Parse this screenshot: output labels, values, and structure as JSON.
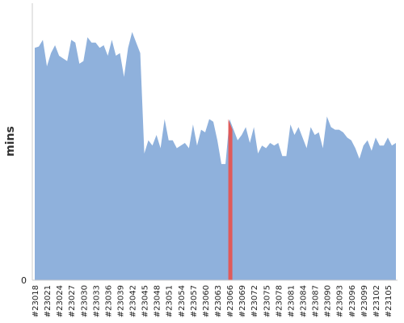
{
  "chart_data": {
    "type": "area",
    "ylabel": "mins",
    "xlabel": "",
    "title": "",
    "ylim": [
      0,
      100
    ],
    "y_tick_labels": [
      "0"
    ],
    "grid": false,
    "x_tick_labels": [
      "#23018",
      "#23021",
      "#23024",
      "#23027",
      "#23030",
      "#23033",
      "#23036",
      "#23039",
      "#23042",
      "#23045",
      "#23048",
      "#23051",
      "#23054",
      "#23057",
      "#23060",
      "#23063",
      "#23066",
      "#23069",
      "#23072",
      "#23075",
      "#23078",
      "#23081",
      "#23084",
      "#23087",
      "#23090",
      "#23093",
      "#23096",
      "#23099",
      "#23102",
      "#23105"
    ],
    "x": [
      "#23018",
      "#23019",
      "#23020",
      "#23021",
      "#23022",
      "#23023",
      "#23024",
      "#23025",
      "#23026",
      "#23027",
      "#23028",
      "#23029",
      "#23030",
      "#23031",
      "#23032",
      "#23033",
      "#23034",
      "#23035",
      "#23036",
      "#23037",
      "#23038",
      "#23039",
      "#23040",
      "#23041",
      "#23042",
      "#23043",
      "#23044",
      "#23045",
      "#23046",
      "#23047",
      "#23048",
      "#23049",
      "#23050",
      "#23051",
      "#23052",
      "#23053",
      "#23054",
      "#23055",
      "#23056",
      "#23057",
      "#23058",
      "#23059",
      "#23060",
      "#23061",
      "#23062",
      "#23063",
      "#23064",
      "#23065",
      "#23066",
      "#23067",
      "#23068",
      "#23069",
      "#23070",
      "#23071",
      "#23072",
      "#23073",
      "#23074",
      "#23075",
      "#23076",
      "#23077",
      "#23078",
      "#23079",
      "#23080",
      "#23081",
      "#23082",
      "#23083",
      "#23084",
      "#23085",
      "#23086",
      "#23087",
      "#23088",
      "#23089",
      "#23090",
      "#23091",
      "#23092",
      "#23093",
      "#23094",
      "#23095",
      "#23096",
      "#23097",
      "#23098",
      "#23099",
      "#23100",
      "#23101",
      "#23102",
      "#23103",
      "#23104",
      "#23105",
      "#23106",
      "#23107"
    ],
    "series": [
      {
        "values": [
          88,
          88.5,
          91,
          81,
          86,
          89,
          85,
          84,
          83,
          91,
          90,
          82,
          83,
          92,
          90,
          90,
          88,
          89,
          85,
          91,
          85,
          86,
          77,
          88,
          94,
          90,
          86,
          48,
          53,
          51,
          55,
          50,
          61,
          53,
          53,
          50,
          51,
          52,
          50,
          59,
          51,
          57,
          56,
          61,
          60,
          53,
          44,
          44,
          61,
          57,
          53,
          55,
          58,
          52,
          58,
          48,
          51,
          50,
          52,
          51,
          52,
          47,
          47,
          59,
          55,
          58,
          54,
          50,
          58,
          55,
          56,
          50,
          62,
          58,
          57,
          57,
          56,
          54,
          53,
          50,
          46,
          51,
          53,
          49,
          54,
          51,
          51,
          54,
          51,
          52
        ],
        "color": "#8fb1dc"
      }
    ],
    "highlight": {
      "category": "#23066",
      "color": "#e05a5a"
    }
  }
}
